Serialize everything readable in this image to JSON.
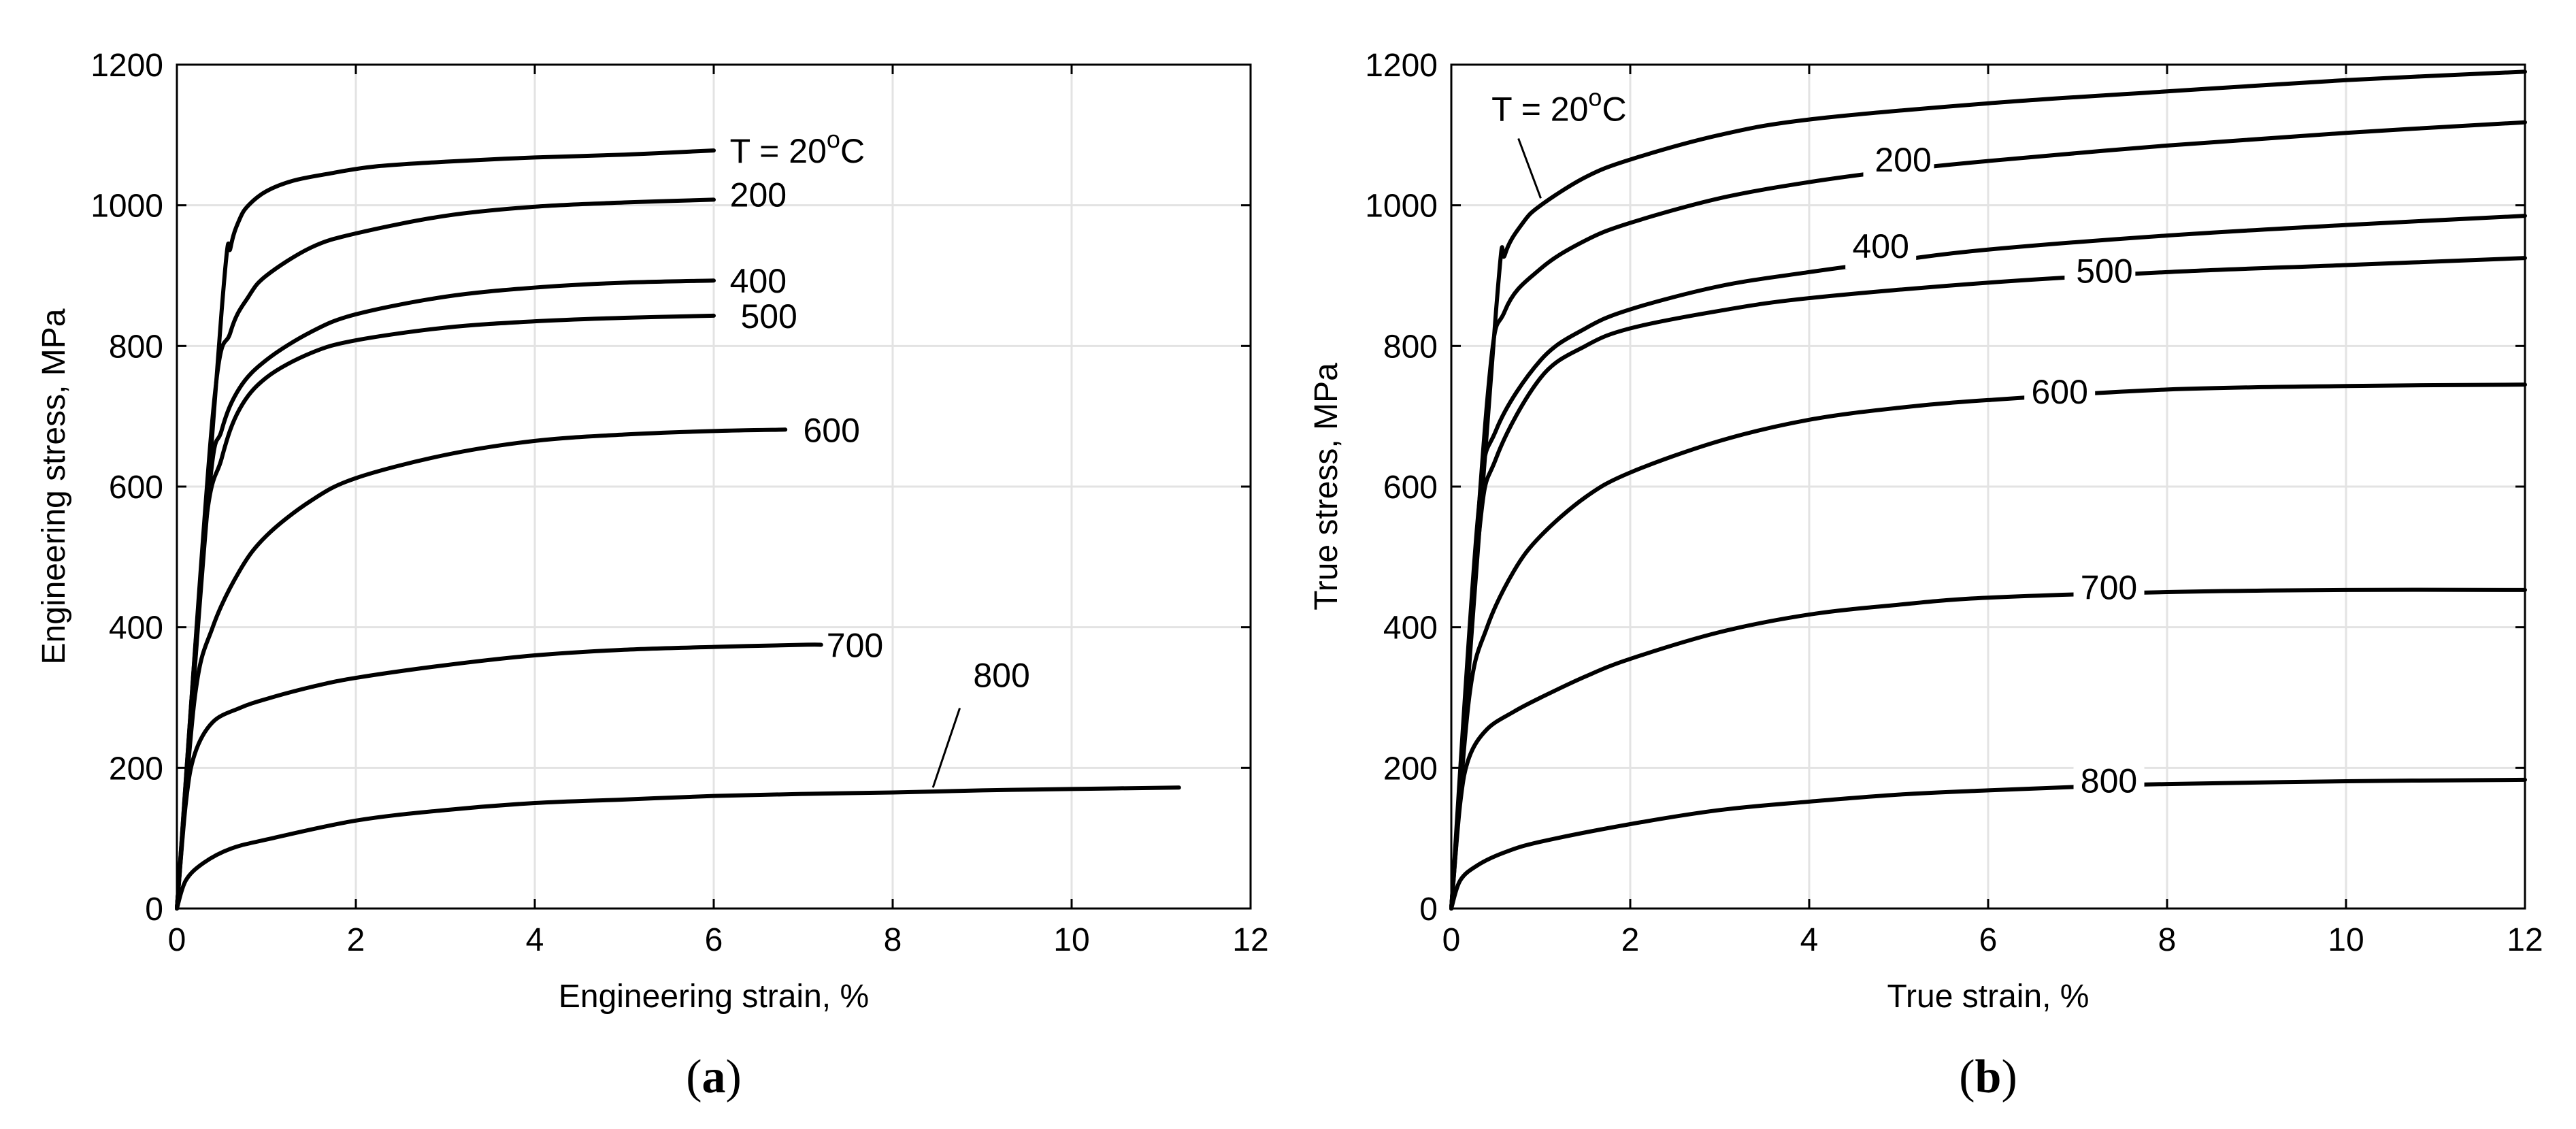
{
  "chart_data": [
    {
      "type": "line",
      "panel_label": "a",
      "xlabel": "Engineering strain, %",
      "ylabel": "Engineering stress, MPa",
      "xlim": [
        0,
        12
      ],
      "ylim": [
        0,
        1200
      ],
      "xticks": [
        "0",
        "2",
        "4",
        "6",
        "8",
        "10",
        "12"
      ],
      "yticks": [
        "0",
        "200",
        "400",
        "600",
        "800",
        "1000",
        "1200"
      ],
      "grid": true,
      "series": [
        {
          "name": "T = 20",
          "name_sup": "o",
          "name_suffix": "C",
          "x": [
            0,
            0.5,
            0.6,
            0.7,
            0.8,
            1.0,
            1.3,
            1.7,
            2.2,
            3,
            4,
            5,
            6
          ],
          "y": [
            0,
            850,
            940,
            980,
            1000,
            1020,
            1035,
            1045,
            1055,
            1062,
            1068,
            1072,
            1078
          ]
        },
        {
          "name": "200",
          "x": [
            0,
            0.4,
            0.6,
            0.8,
            1.0,
            1.5,
            2,
            3,
            4,
            5,
            6
          ],
          "y": [
            0,
            700,
            820,
            870,
            900,
            940,
            960,
            985,
            998,
            1004,
            1008
          ]
        },
        {
          "name": "400",
          "x": [
            0,
            0.35,
            0.5,
            0.7,
            1.0,
            1.5,
            2,
            3,
            4,
            5,
            6
          ],
          "y": [
            0,
            580,
            680,
            740,
            780,
            820,
            845,
            870,
            883,
            890,
            893
          ]
        },
        {
          "name": "500",
          "x": [
            0,
            0.3,
            0.5,
            0.7,
            1.0,
            1.5,
            2,
            3,
            4,
            5,
            6
          ],
          "y": [
            0,
            520,
            640,
            710,
            755,
            790,
            808,
            826,
            835,
            840,
            843
          ]
        },
        {
          "name": "600",
          "x": [
            0,
            0.2,
            0.4,
            0.7,
            1.0,
            1.5,
            2,
            3,
            4,
            5,
            6,
            6.8
          ],
          "y": [
            0,
            300,
            400,
            480,
            530,
            580,
            612,
            645,
            665,
            674,
            679,
            681
          ]
        },
        {
          "name": "700",
          "x": [
            0,
            0.1,
            0.2,
            0.4,
            0.7,
            1.0,
            1.5,
            2,
            3,
            4,
            5,
            6,
            7,
            7.2
          ],
          "y": [
            0,
            150,
            220,
            265,
            285,
            298,
            315,
            328,
            346,
            360,
            368,
            372,
            375,
            375
          ]
        },
        {
          "name": "800",
          "x": [
            0,
            0.1,
            0.3,
            0.6,
            1,
            2,
            3,
            4,
            5,
            6,
            7,
            8,
            9,
            10,
            11.2
          ],
          "y": [
            0,
            40,
            65,
            85,
            98,
            125,
            140,
            150,
            155,
            160,
            163,
            165,
            168,
            170,
            172
          ]
        }
      ]
    },
    {
      "type": "line",
      "panel_label": "b",
      "xlabel": "True strain, %",
      "ylabel": "True stress, MPa",
      "xlim": [
        0,
        12
      ],
      "ylim": [
        0,
        1200
      ],
      "xticks": [
        "0",
        "2",
        "4",
        "6",
        "8",
        "10",
        "12"
      ],
      "yticks": [
        "0",
        "200",
        "400",
        "600",
        "800",
        "1000",
        "1200"
      ],
      "grid": true,
      "series": [
        {
          "name": "T = 20",
          "name_sup": "o",
          "name_suffix": "C",
          "x": [
            0,
            0.5,
            0.6,
            0.8,
            1.0,
            1.5,
            2,
            3,
            4,
            6,
            8,
            10,
            12
          ],
          "y": [
            0,
            850,
            930,
            975,
            1000,
            1040,
            1065,
            1100,
            1122,
            1145,
            1162,
            1178,
            1190
          ]
        },
        {
          "name": "200",
          "x": [
            0,
            0.4,
            0.6,
            1.0,
            1.5,
            2,
            3,
            4,
            5,
            6,
            8,
            10,
            12
          ],
          "y": [
            0,
            720,
            850,
            910,
            950,
            975,
            1010,
            1033,
            1050,
            1063,
            1085,
            1103,
            1118
          ]
        },
        {
          "name": "400",
          "x": [
            0,
            0.3,
            0.5,
            1.0,
            1.5,
            2,
            3,
            4,
            5,
            6,
            8,
            10,
            12
          ],
          "y": [
            0,
            560,
            680,
            780,
            825,
            852,
            885,
            905,
            922,
            937,
            957,
            972,
            985
          ]
        },
        {
          "name": "500",
          "x": [
            0,
            0.3,
            0.5,
            1.0,
            1.5,
            2,
            3,
            4,
            6,
            8,
            10,
            12
          ],
          "y": [
            0,
            520,
            640,
            755,
            800,
            825,
            850,
            868,
            890,
            905,
            915,
            925
          ]
        },
        {
          "name": "600",
          "x": [
            0,
            0.2,
            0.4,
            0.7,
            1.0,
            1.5,
            2,
            3,
            4,
            5,
            6,
            8,
            10,
            12
          ],
          "y": [
            0,
            300,
            400,
            480,
            530,
            585,
            620,
            665,
            695,
            712,
            723,
            738,
            743,
            745
          ]
        },
        {
          "name": "700",
          "x": [
            0,
            0.1,
            0.2,
            0.4,
            0.7,
            1,
            1.5,
            2,
            3,
            4,
            5,
            6,
            8,
            10,
            12
          ],
          "y": [
            0,
            150,
            215,
            255,
            280,
            300,
            330,
            355,
            393,
            418,
            432,
            442,
            450,
            453,
            453
          ]
        },
        {
          "name": "800",
          "x": [
            0,
            0.1,
            0.3,
            0.6,
            1,
            2,
            3,
            4,
            5,
            6,
            7,
            8,
            10,
            12
          ],
          "y": [
            0,
            40,
            62,
            80,
            95,
            120,
            140,
            152,
            162,
            168,
            173,
            177,
            181,
            183
          ]
        }
      ]
    }
  ]
}
